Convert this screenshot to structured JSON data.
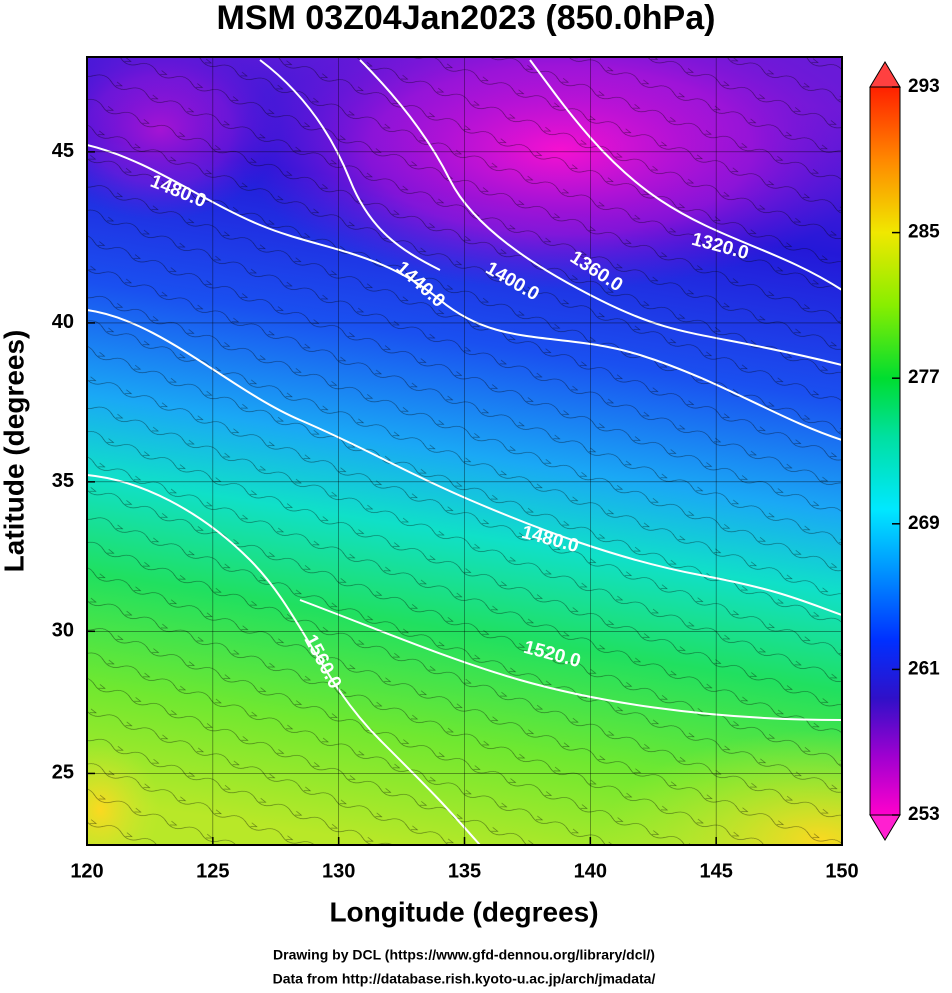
{
  "title": "MSM 03Z04Jan2023 (850.0hPa)",
  "x_axis": {
    "label": "Longitude (degrees)",
    "lim": [
      120,
      150
    ],
    "ticks": [
      120,
      125,
      130,
      135,
      140,
      145,
      150
    ]
  },
  "y_axis": {
    "label": "Latitude  (degrees)",
    "lim": [
      22.4,
      47.6
    ],
    "ticks": [
      25,
      30,
      35,
      40,
      45
    ],
    "scale": "mercator"
  },
  "colorbar": {
    "lim": [
      253,
      293
    ],
    "ticks": [
      253,
      261,
      269,
      277,
      285,
      293
    ]
  },
  "contour_labels": [
    "1480.0",
    "1440.0",
    "1400.0",
    "1360.0",
    "1320.0",
    "1480.0",
    "1520.0",
    "1560.0"
  ],
  "credits": [
    "Drawing by DCL (https://www.gfd-dennou.org/library/dcl/)",
    "Data from http://database.rish.kyoto-u.ac.jp/arch/jmadata/"
  ]
}
